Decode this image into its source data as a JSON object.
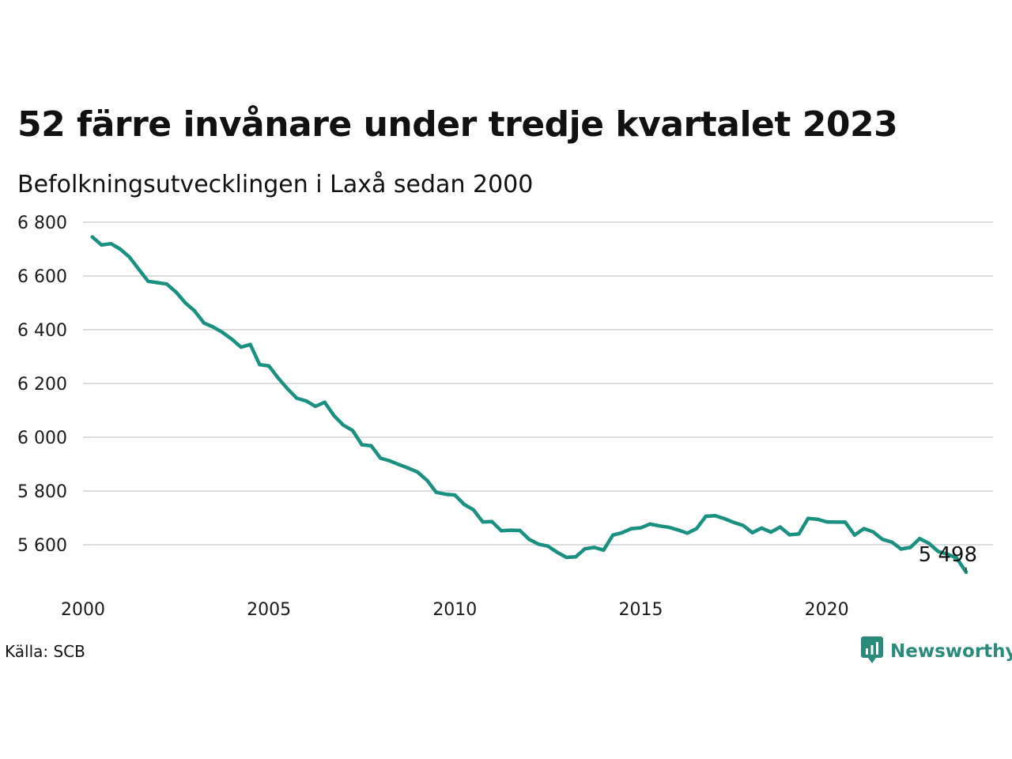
{
  "title": "52 färre invånare under tredje kvartalet 2023",
  "subtitle": "Befolkningsutvecklingen i Laxå sedan 2000",
  "source": "Källa: SCB",
  "brand": {
    "name": "Newsworthy",
    "icon": "newsworthy-logo-icon",
    "color": "#2a8a7c"
  },
  "chart_data": {
    "type": "line",
    "line_color": "#1a9080",
    "grid": true,
    "ylim": [
      5500,
      6800
    ],
    "xlim": [
      2000,
      2023.75
    ],
    "y_ticks": [
      {
        "value": 6800,
        "label": "6 800"
      },
      {
        "value": 6600,
        "label": "6 600"
      },
      {
        "value": 6400,
        "label": "6 400"
      },
      {
        "value": 6200,
        "label": "6 200"
      },
      {
        "value": 6000,
        "label": "6 000"
      },
      {
        "value": 5800,
        "label": "5 800"
      },
      {
        "value": 5600,
        "label": "5 600"
      }
    ],
    "x_ticks": [
      {
        "value": 2000,
        "label": "2000"
      },
      {
        "value": 2005,
        "label": "2005"
      },
      {
        "value": 2010,
        "label": "2010"
      },
      {
        "value": 2015,
        "label": "2015"
      },
      {
        "value": 2020,
        "label": "2020"
      }
    ],
    "last_value_label": "5 498",
    "series": [
      {
        "values": [
          {
            "x": 2000.25,
            "y": 6745
          },
          {
            "x": 2000.5,
            "y": 6715
          },
          {
            "x": 2000.75,
            "y": 6720
          },
          {
            "x": 2001.0,
            "y": 6700
          },
          {
            "x": 2001.25,
            "y": 6670
          },
          {
            "x": 2001.5,
            "y": 6625
          },
          {
            "x": 2001.75,
            "y": 6580
          },
          {
            "x": 2002.0,
            "y": 6575
          },
          {
            "x": 2002.25,
            "y": 6570
          },
          {
            "x": 2002.5,
            "y": 6540
          },
          {
            "x": 2002.75,
            "y": 6500
          },
          {
            "x": 2003.0,
            "y": 6470
          },
          {
            "x": 2003.25,
            "y": 6425
          },
          {
            "x": 2003.5,
            "y": 6410
          },
          {
            "x": 2003.75,
            "y": 6390
          },
          {
            "x": 2004.0,
            "y": 6365
          },
          {
            "x": 2004.25,
            "y": 6335
          },
          {
            "x": 2004.5,
            "y": 6345
          },
          {
            "x": 2004.75,
            "y": 6270
          },
          {
            "x": 2005.0,
            "y": 6265
          },
          {
            "x": 2005.25,
            "y": 6220
          },
          {
            "x": 2005.5,
            "y": 6180
          },
          {
            "x": 2005.75,
            "y": 6145
          },
          {
            "x": 2006.0,
            "y": 6135
          },
          {
            "x": 2006.25,
            "y": 6115
          },
          {
            "x": 2006.5,
            "y": 6130
          },
          {
            "x": 2006.75,
            "y": 6080
          },
          {
            "x": 2007.0,
            "y": 6045
          },
          {
            "x": 2007.25,
            "y": 6025
          },
          {
            "x": 2007.5,
            "y": 5972
          },
          {
            "x": 2007.75,
            "y": 5968
          },
          {
            "x": 2008.0,
            "y": 5922
          },
          {
            "x": 2008.25,
            "y": 5912
          },
          {
            "x": 2008.5,
            "y": 5898
          },
          {
            "x": 2008.75,
            "y": 5885
          },
          {
            "x": 2009.0,
            "y": 5870
          },
          {
            "x": 2009.25,
            "y": 5840
          },
          {
            "x": 2009.5,
            "y": 5795
          },
          {
            "x": 2009.75,
            "y": 5788
          },
          {
            "x": 2010.0,
            "y": 5785
          },
          {
            "x": 2010.25,
            "y": 5750
          },
          {
            "x": 2010.5,
            "y": 5730
          },
          {
            "x": 2010.75,
            "y": 5685
          },
          {
            "x": 2011.0,
            "y": 5686
          },
          {
            "x": 2011.25,
            "y": 5652
          },
          {
            "x": 2011.5,
            "y": 5654
          },
          {
            "x": 2011.75,
            "y": 5653
          },
          {
            "x": 2012.0,
            "y": 5620
          },
          {
            "x": 2012.25,
            "y": 5602
          },
          {
            "x": 2012.5,
            "y": 5595
          },
          {
            "x": 2012.75,
            "y": 5572
          },
          {
            "x": 2013.0,
            "y": 5553
          },
          {
            "x": 2013.25,
            "y": 5555
          },
          {
            "x": 2013.5,
            "y": 5585
          },
          {
            "x": 2013.75,
            "y": 5590
          },
          {
            "x": 2014.0,
            "y": 5580
          },
          {
            "x": 2014.25,
            "y": 5636
          },
          {
            "x": 2014.5,
            "y": 5645
          },
          {
            "x": 2014.75,
            "y": 5660
          },
          {
            "x": 2015.0,
            "y": 5663
          },
          {
            "x": 2015.25,
            "y": 5677
          },
          {
            "x": 2015.5,
            "y": 5670
          },
          {
            "x": 2015.75,
            "y": 5665
          },
          {
            "x": 2016.0,
            "y": 5655
          },
          {
            "x": 2016.25,
            "y": 5643
          },
          {
            "x": 2016.5,
            "y": 5660
          },
          {
            "x": 2016.75,
            "y": 5706
          },
          {
            "x": 2017.0,
            "y": 5708
          },
          {
            "x": 2017.25,
            "y": 5697
          },
          {
            "x": 2017.5,
            "y": 5683
          },
          {
            "x": 2017.75,
            "y": 5672
          },
          {
            "x": 2018.0,
            "y": 5645
          },
          {
            "x": 2018.25,
            "y": 5662
          },
          {
            "x": 2018.5,
            "y": 5647
          },
          {
            "x": 2018.75,
            "y": 5666
          },
          {
            "x": 2019.0,
            "y": 5637
          },
          {
            "x": 2019.25,
            "y": 5640
          },
          {
            "x": 2019.5,
            "y": 5698
          },
          {
            "x": 2019.75,
            "y": 5695
          },
          {
            "x": 2020.0,
            "y": 5685
          },
          {
            "x": 2020.25,
            "y": 5684
          },
          {
            "x": 2020.5,
            "y": 5684
          },
          {
            "x": 2020.75,
            "y": 5636
          },
          {
            "x": 2021.0,
            "y": 5660
          },
          {
            "x": 2021.25,
            "y": 5648
          },
          {
            "x": 2021.5,
            "y": 5620
          },
          {
            "x": 2021.75,
            "y": 5610
          },
          {
            "x": 2022.0,
            "y": 5584
          },
          {
            "x": 2022.25,
            "y": 5590
          },
          {
            "x": 2022.5,
            "y": 5623
          },
          {
            "x": 2022.75,
            "y": 5605
          },
          {
            "x": 2023.0,
            "y": 5575
          },
          {
            "x": 2023.25,
            "y": 5565
          },
          {
            "x": 2023.5,
            "y": 5550
          },
          {
            "x": 2023.75,
            "y": 5498
          }
        ]
      }
    ]
  }
}
